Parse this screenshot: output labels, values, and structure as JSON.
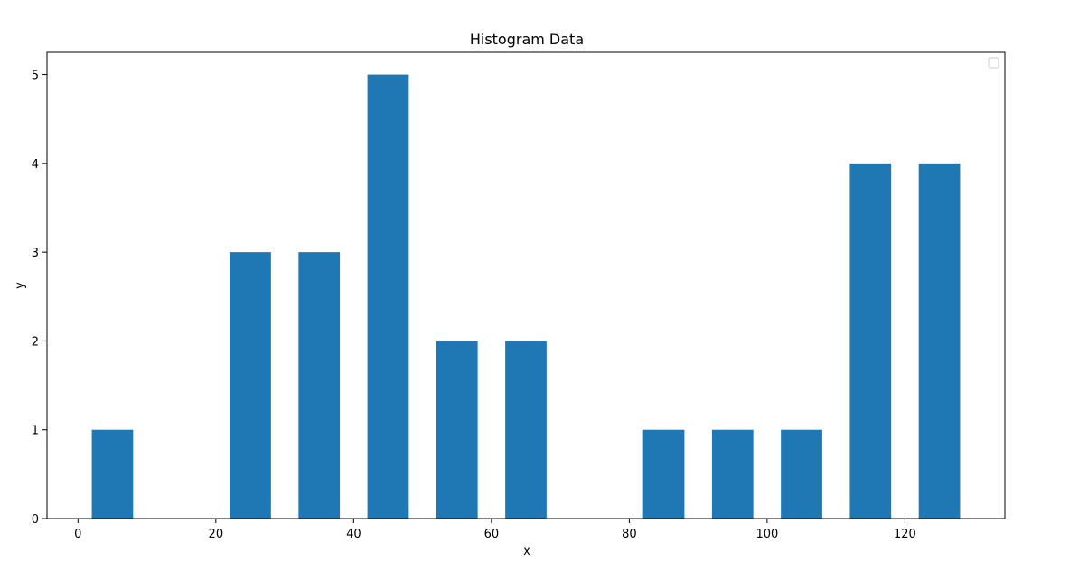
{
  "chart_data": {
    "type": "bar",
    "title": "Histogram Data",
    "xlabel": "x",
    "ylabel": "y",
    "x": [
      5,
      25,
      35,
      45,
      55,
      65,
      85,
      95,
      105,
      115,
      125
    ],
    "values": [
      1,
      3,
      3,
      5,
      2,
      2,
      1,
      1,
      1,
      4,
      4
    ],
    "bar_width": 6,
    "xlim": [
      -4.5,
      134.5
    ],
    "ylim": [
      0,
      5.25
    ],
    "xticks": [
      0,
      20,
      40,
      60,
      80,
      100,
      120
    ],
    "yticks": [
      0,
      1,
      2,
      3,
      4,
      5
    ],
    "bar_color": "#1f77b4",
    "grid": false,
    "legend": "top-right, empty"
  }
}
